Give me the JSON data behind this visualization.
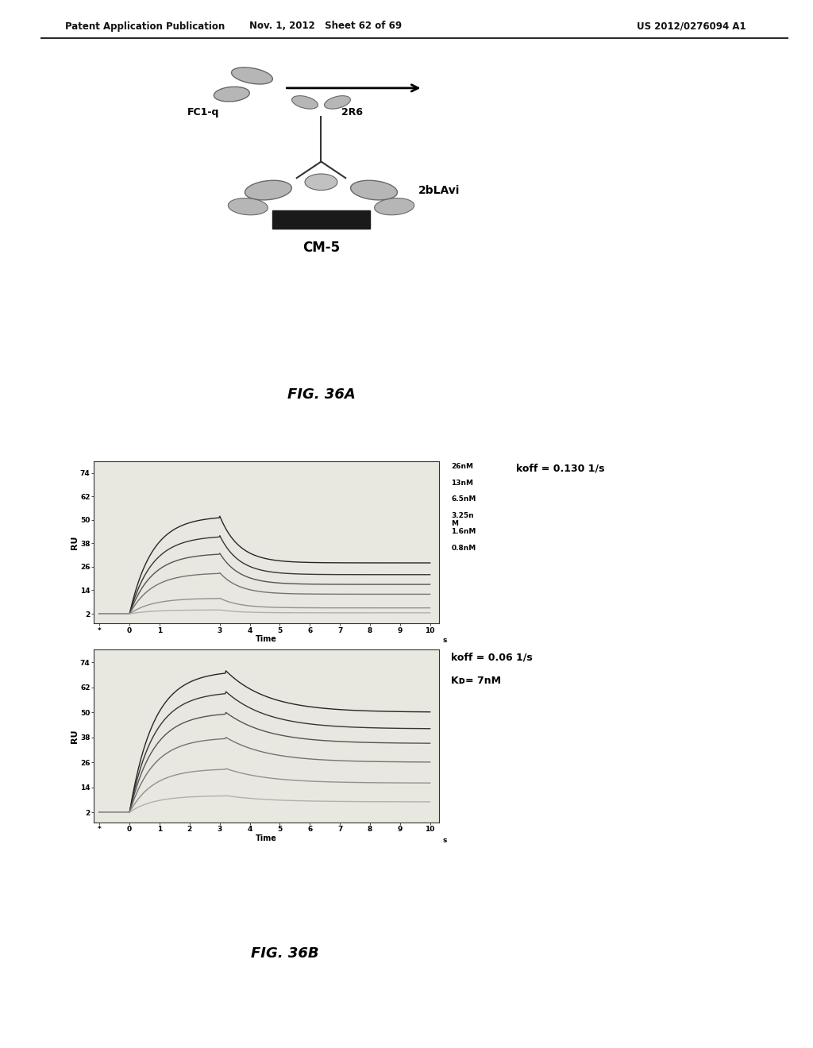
{
  "header_left": "Patent Application Publication",
  "header_mid": "Nov. 1, 2012   Sheet 62 of 69",
  "header_right": "US 2012/0276094 A1",
  "fig_a_label": "FIG. 36A",
  "fig_b_label": "FIG. 36B",
  "diagram_labels": {
    "fc1q": "FC1-q",
    "2r6": "2R6",
    "2blavi": "2bLAvi",
    "cm5": "CM-5"
  },
  "plot1": {
    "ylabel": "RU",
    "xlabel": "Time",
    "xlabel_unit": "s",
    "yticks": [
      2,
      14,
      26,
      38,
      50,
      62,
      74
    ],
    "xticks": [
      -1,
      0,
      1,
      3,
      4,
      5,
      6,
      7,
      8,
      9,
      10
    ],
    "xtick_labels": [
      "*",
      "0",
      "1",
      "3",
      "4",
      "5",
      "6",
      "7",
      "8",
      "9",
      "10"
    ],
    "legend_labels": [
      "26nM",
      "13nM",
      "6.5nM",
      "3.25n\nM",
      "1.6nM",
      "0.8nM"
    ],
    "koff_text": "koff = 0.130 1/s",
    "peak_time": 3.0,
    "assoc_start": 0.0,
    "baseline": 2.0,
    "peak_heights": [
      52,
      42,
      33,
      23,
      10,
      4
    ],
    "plateau_heights": [
      28,
      22,
      17,
      12,
      5,
      2.5
    ]
  },
  "plot2": {
    "ylabel": "RU",
    "xlabel": "Time",
    "xlabel_unit": "s",
    "yticks": [
      2,
      14,
      26,
      38,
      50,
      62,
      74
    ],
    "xticks": [
      -1,
      0,
      1,
      2,
      3,
      4,
      5,
      6,
      7,
      8,
      9,
      10
    ],
    "xtick_labels": [
      "*",
      "0",
      "1",
      "2",
      "3",
      "4",
      "5",
      "6",
      "7",
      "8",
      "9",
      "10"
    ],
    "legend_labels": [
      "26nM",
      "13nM",
      "6.5nM",
      "3.25nM",
      "1.6nM",
      "0.8nM"
    ],
    "koff_text": "koff = 0.06 1/s",
    "kd_text": "Kᴅ= 7nM",
    "peak_time": 3.2,
    "assoc_start": 0.0,
    "baseline": 2.0,
    "peak_heights": [
      70,
      60,
      50,
      38,
      23,
      10
    ],
    "plateau_heights": [
      50,
      42,
      35,
      26,
      16,
      7
    ]
  },
  "bg_color": "#ffffff",
  "text_color": "#111111",
  "plot_bg": "#e8e8e0",
  "line_colors": [
    "#111111",
    "#222222",
    "#444444",
    "#666666",
    "#888888",
    "#aaaaaa"
  ]
}
